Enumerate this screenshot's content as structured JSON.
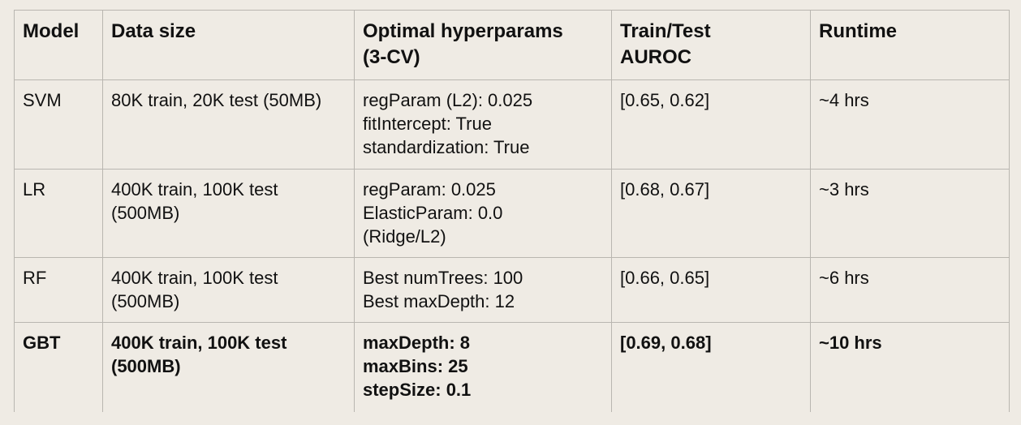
{
  "table": {
    "headers": [
      {
        "lines": [
          "Model"
        ]
      },
      {
        "lines": [
          "Data size"
        ]
      },
      {
        "lines": [
          "Optimal hyperparams",
          "(3-CV)"
        ]
      },
      {
        "lines": [
          "Train/Test",
          "AUROC"
        ]
      },
      {
        "lines": [
          "Runtime"
        ]
      }
    ],
    "rows": [
      {
        "model": "SVM",
        "data_size": [
          "80K train, 20K test (50MB)"
        ],
        "hyperparams": [
          "regParam (L2):  0.025",
          "fitIntercept:  True",
          "standardization: True"
        ],
        "auroc": "[0.65, 0.62]",
        "runtime": "~4 hrs"
      },
      {
        "model": "LR",
        "data_size": [
          "400K train, 100K test",
          "(500MB)"
        ],
        "hyperparams": [
          "regParam:  0.025",
          "ElasticParam:  0.0",
          "(Ridge/L2)"
        ],
        "auroc": "[0.68, 0.67]",
        "runtime": "~3 hrs"
      },
      {
        "model": "RF",
        "data_size": [
          "400K train, 100K test",
          "(500MB)"
        ],
        "hyperparams": [
          "Best numTrees:  100",
          "Best maxDepth:  12"
        ],
        "auroc": "[0.66, 0.65]",
        "runtime": "~6 hrs"
      },
      {
        "model": "GBT",
        "data_size": [
          "400K train, 100K test",
          "(500MB)"
        ],
        "hyperparams": [
          "maxDepth:  8",
          "maxBins:  25",
          "stepSize:  0.1"
        ],
        "auroc": "[0.69, 0.68]",
        "runtime": "~10 hrs"
      }
    ]
  }
}
